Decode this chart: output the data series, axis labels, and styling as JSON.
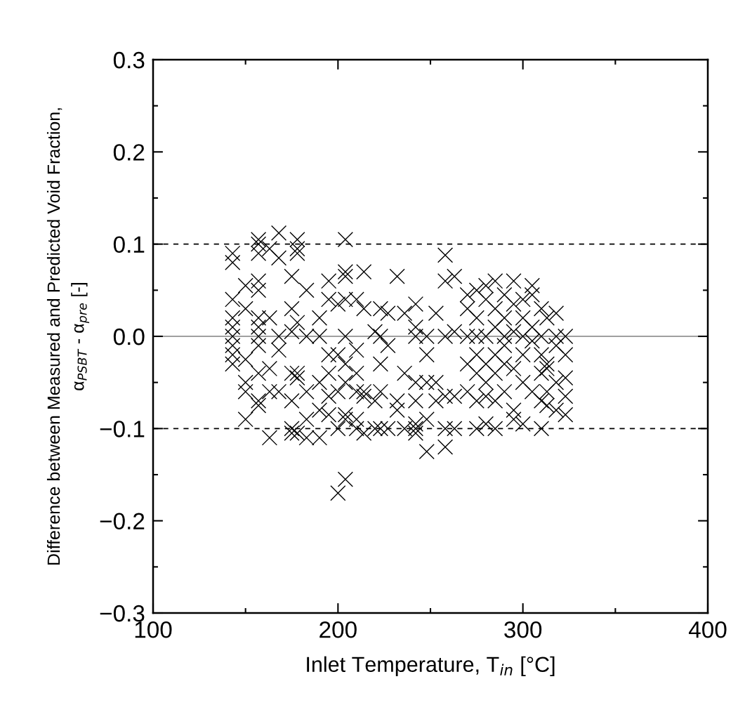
{
  "chart_data": {
    "type": "scatter",
    "xlabel": "Inlet Temperature, T$_{in}$ [°C]",
    "ylabel": "Difference between Measured and Predicted Void Fraction,\nα$_{PSBT}$ - α$_{pre}$ [-]",
    "marker": "cross",
    "color": "#000000",
    "x": [
      143,
      143,
      143,
      143,
      143,
      143,
      143,
      143,
      143,
      150,
      150,
      150,
      150,
      150,
      150,
      157,
      157,
      157,
      157,
      157,
      157,
      157,
      157,
      157,
      157,
      157,
      157,
      163,
      163,
      163,
      163,
      163,
      168,
      168,
      168,
      168,
      168,
      175,
      175,
      175,
      175,
      175,
      175,
      175,
      178,
      178,
      178,
      178,
      178,
      178,
      178,
      183,
      183,
      183,
      183,
      183,
      190,
      190,
      190,
      190,
      190,
      195,
      195,
      195,
      195,
      195,
      195,
      200,
      200,
      200,
      200,
      200,
      204,
      204,
      204,
      204,
      204,
      204,
      204,
      204,
      204,
      204,
      210,
      210,
      210,
      210,
      210,
      210,
      214,
      214,
      214,
      214,
      214,
      220,
      220,
      220,
      223,
      223,
      223,
      223,
      223,
      227,
      227,
      227,
      232,
      232,
      232,
      236,
      236,
      236,
      242,
      242,
      242,
      242,
      242,
      242,
      242,
      242,
      248,
      248,
      248,
      248,
      248,
      253,
      253,
      253,
      258,
      258,
      258,
      258,
      258,
      258,
      263,
      263,
      263,
      263,
      270,
      270,
      270,
      270,
      270,
      275,
      275,
      275,
      275,
      275,
      275,
      275,
      280,
      280,
      280,
      280,
      280,
      280,
      280,
      285,
      285,
      285,
      285,
      285,
      285,
      285,
      290,
      290,
      290,
      290,
      290,
      290,
      295,
      295,
      295,
      295,
      295,
      295,
      300,
      300,
      300,
      300,
      300,
      300,
      305,
      305,
      305,
      305,
      305,
      310,
      310,
      310,
      310,
      310,
      310,
      313,
      313,
      313,
      313,
      313,
      318,
      318,
      318,
      318,
      318,
      323,
      323,
      323,
      323,
      323
    ],
    "values": [
      0.09,
      0.08,
      0.04,
      0.02,
      0.01,
      0.0,
      -0.01,
      -0.02,
      -0.03,
      0.055,
      0.03,
      -0.025,
      -0.05,
      -0.06,
      -0.09,
      0.1,
      0.105,
      0.09,
      0.06,
      0.05,
      0.02,
      0.01,
      0.0,
      -0.01,
      -0.04,
      -0.07,
      -0.075,
      0.095,
      0.02,
      -0.035,
      -0.06,
      -0.11,
      0.112,
      0.085,
      0.0,
      -0.015,
      -0.06,
      0.065,
      0.03,
      0.005,
      -0.04,
      -0.07,
      -0.1,
      -0.105,
      0.105,
      0.095,
      0.09,
      0.015,
      -0.04,
      -0.045,
      -0.105,
      0.05,
      0.0,
      -0.06,
      -0.09,
      -0.11,
      0.02,
      0.0,
      -0.05,
      -0.08,
      -0.11,
      0.06,
      0.04,
      -0.02,
      -0.04,
      -0.065,
      -0.085,
      0.035,
      -0.02,
      -0.06,
      -0.1,
      -0.17,
      0.105,
      0.07,
      0.065,
      0.04,
      0.0,
      -0.03,
      -0.05,
      -0.085,
      -0.09,
      -0.155,
      0.04,
      -0.015,
      -0.04,
      -0.06,
      -0.09,
      -0.1,
      0.07,
      0.03,
      -0.06,
      -0.065,
      -0.105,
      -0.07,
      -0.1,
      0.005,
      0.03,
      0.0,
      -0.03,
      -0.06,
      -0.1,
      0.025,
      -0.01,
      -0.1,
      0.065,
      -0.07,
      -0.08,
      0.025,
      -0.04,
      -0.1,
      0.035,
      0.01,
      0.0,
      -0.05,
      -0.07,
      -0.095,
      -0.1,
      -0.105,
      0.0,
      -0.02,
      -0.05,
      -0.09,
      -0.125,
      0.025,
      -0.07,
      -0.05,
      0.088,
      0.06,
      0.0,
      -0.065,
      -0.1,
      -0.12,
      0.065,
      0.005,
      -0.065,
      -0.1,
      0.045,
      0.03,
      0.0,
      -0.03,
      -0.06,
      0.05,
      0.02,
      0.0,
      -0.02,
      -0.04,
      -0.07,
      -0.1,
      0.055,
      0.04,
      0.0,
      -0.03,
      -0.05,
      -0.065,
      -0.095,
      0.06,
      0.03,
      0.01,
      -0.02,
      -0.04,
      -0.07,
      -0.1,
      0.045,
      0.02,
      0.0,
      -0.01,
      -0.03,
      -0.06,
      0.06,
      0.035,
      0.005,
      -0.035,
      -0.08,
      -0.09,
      0.04,
      0.02,
      0.0,
      -0.02,
      -0.05,
      -0.095,
      0.055,
      0.045,
      0.01,
      -0.005,
      -0.06,
      0.03,
      0.0,
      -0.02,
      -0.04,
      -0.07,
      -0.1,
      0.02,
      -0.03,
      -0.035,
      -0.06,
      -0.075,
      0.025,
      0.0,
      -0.01,
      -0.05,
      -0.08,
      0.0,
      -0.02,
      -0.045,
      -0.065,
      -0.085
    ],
    "xlim": [
      100,
      400
    ],
    "ylim": [
      -0.3,
      0.3
    ],
    "xticks": [
      100,
      {
        "value": 150,
        "label": null
      },
      200,
      {
        "value": 250,
        "label": null
      },
      300,
      {
        "value": 350,
        "label": null
      },
      400
    ],
    "yticks": [
      {
        "value": -0.3,
        "label": "−0.3"
      },
      {
        "value": -0.25,
        "label": null
      },
      {
        "value": -0.2,
        "label": "−0.2"
      },
      {
        "value": -0.15,
        "label": null
      },
      {
        "value": -0.1,
        "label": "−0.1"
      },
      {
        "value": -0.05,
        "label": null
      },
      {
        "value": 0.0,
        "label": "0.0"
      },
      {
        "value": 0.05,
        "label": null
      },
      0.1,
      {
        "value": 0.15,
        "label": null
      },
      0.2,
      {
        "value": 0.25,
        "label": null
      },
      0.3
    ],
    "ref_lines": [
      {
        "axis": "y",
        "value": 0,
        "color": "#808080",
        "line_style": "solid"
      },
      {
        "axis": "y",
        "value": 0.1,
        "color": "#000000",
        "line_style": "dashed"
      },
      {
        "axis": "y",
        "value": -0.1,
        "color": "#000000",
        "line_style": "dashed"
      }
    ]
  }
}
